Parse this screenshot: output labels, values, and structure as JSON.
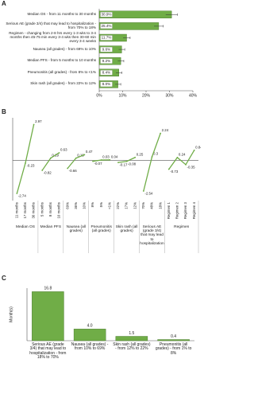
{
  "chart_data": [
    {
      "panel": "A",
      "type": "hbar",
      "categories": [
        "Median OS - from 11 months to 30 months",
        "Serious AE (grade 3/4) that may lead to hospitalization - from 70% to 18%",
        "Regimen - changing from 2-8 hrs every 1-3 wks to 3-4 months then 45-75 min every 3-4 wks then 30-60 min every 3-4 weeks",
        "Nausea (all grades) - from 69% to 10%",
        "Median PFS - from 5 months to 10 months",
        "Pneumonitis (all grades) - from 8% to <1%",
        "Skin rash (all grades) - from 22% to 12%"
      ],
      "values": [
        30.9,
        25.4,
        11.7,
        9.6,
        9.2,
        8.4,
        8.0
      ],
      "value_labels": [
        "30.9%",
        "25.4%",
        "11.7%",
        "9.6%",
        "9.2%",
        "8.4%",
        "8.0%"
      ],
      "errors": [
        2.5,
        2.0,
        1.5,
        1.3,
        1.3,
        1.3,
        1.2
      ],
      "color": "#70ad47",
      "xlim": [
        0,
        40
      ],
      "xticks": [
        {
          "value": 0,
          "label": "0%"
        },
        {
          "value": 10,
          "label": "10%"
        },
        {
          "value": 20,
          "label": "20%"
        },
        {
          "value": 30,
          "label": "30%"
        },
        {
          "value": 40,
          "label": "40%"
        }
      ]
    },
    {
      "panel": "B",
      "type": "grouped-line",
      "groups": [
        {
          "name": "Median OS",
          "categories": [
            "11 months",
            "17 months",
            "30 months"
          ],
          "values": [
            -2.74,
            -0.23,
            2.97
          ]
        },
        {
          "name": "Median PFS",
          "categories": [
            "5 months",
            "8 months",
            "10 months"
          ],
          "values": [
            -0.82,
            0.19,
            0.63
          ]
        },
        {
          "name": "Nausea (all grades)",
          "categories": [
            "69%",
            "36%",
            "10%"
          ],
          "values": [
            -0.66,
            0.19,
            0.47
          ]
        },
        {
          "name": "Pneumonitis (all grades)",
          "categories": [
            "8%",
            "5%",
            "<1%"
          ],
          "values": [
            -0.07,
            0.03,
            0.04
          ]
        },
        {
          "name": "Skin rash (all grades)",
          "categories": [
            "22%",
            "17%",
            "12%"
          ],
          "values": [
            -0.17,
            -0.08,
            0.25
          ]
        },
        {
          "name": "Serious AE (grade 3/4) that may lead to hospitalization",
          "categories": [
            "70%",
            "48%",
            "18%"
          ],
          "values": [
            -2.54,
            0.3,
            2.24
          ]
        },
        {
          "name": "Regimen",
          "categories": [
            "Regimen 1",
            "Regimen 2",
            "Regimen 3",
            "Regimen 4"
          ],
          "values": [
            -0.73,
            0.24,
            -0.35,
            0.84
          ]
        }
      ],
      "color": "#70ad47",
      "ylim": [
        -3.2,
        3.4
      ]
    },
    {
      "panel": "C",
      "type": "bar",
      "categories": [
        "Serious AE (grade 3/4) that may lead to hospitalization - from 18% to 70%",
        "Nausea (all grades) - from 10% to 69%",
        "Skin rash (all grades) - from 12% to 22%",
        "Pneumonitis (all grades) - from 1% to 8%"
      ],
      "values": [
        16.8,
        4.0,
        1.5,
        0.4
      ],
      "value_labels": [
        "16.8",
        "4.0",
        "1.5",
        "0.4"
      ],
      "ylabel": "Month(s)",
      "color": "#70ad47",
      "ylim": [
        0,
        18
      ]
    }
  ]
}
